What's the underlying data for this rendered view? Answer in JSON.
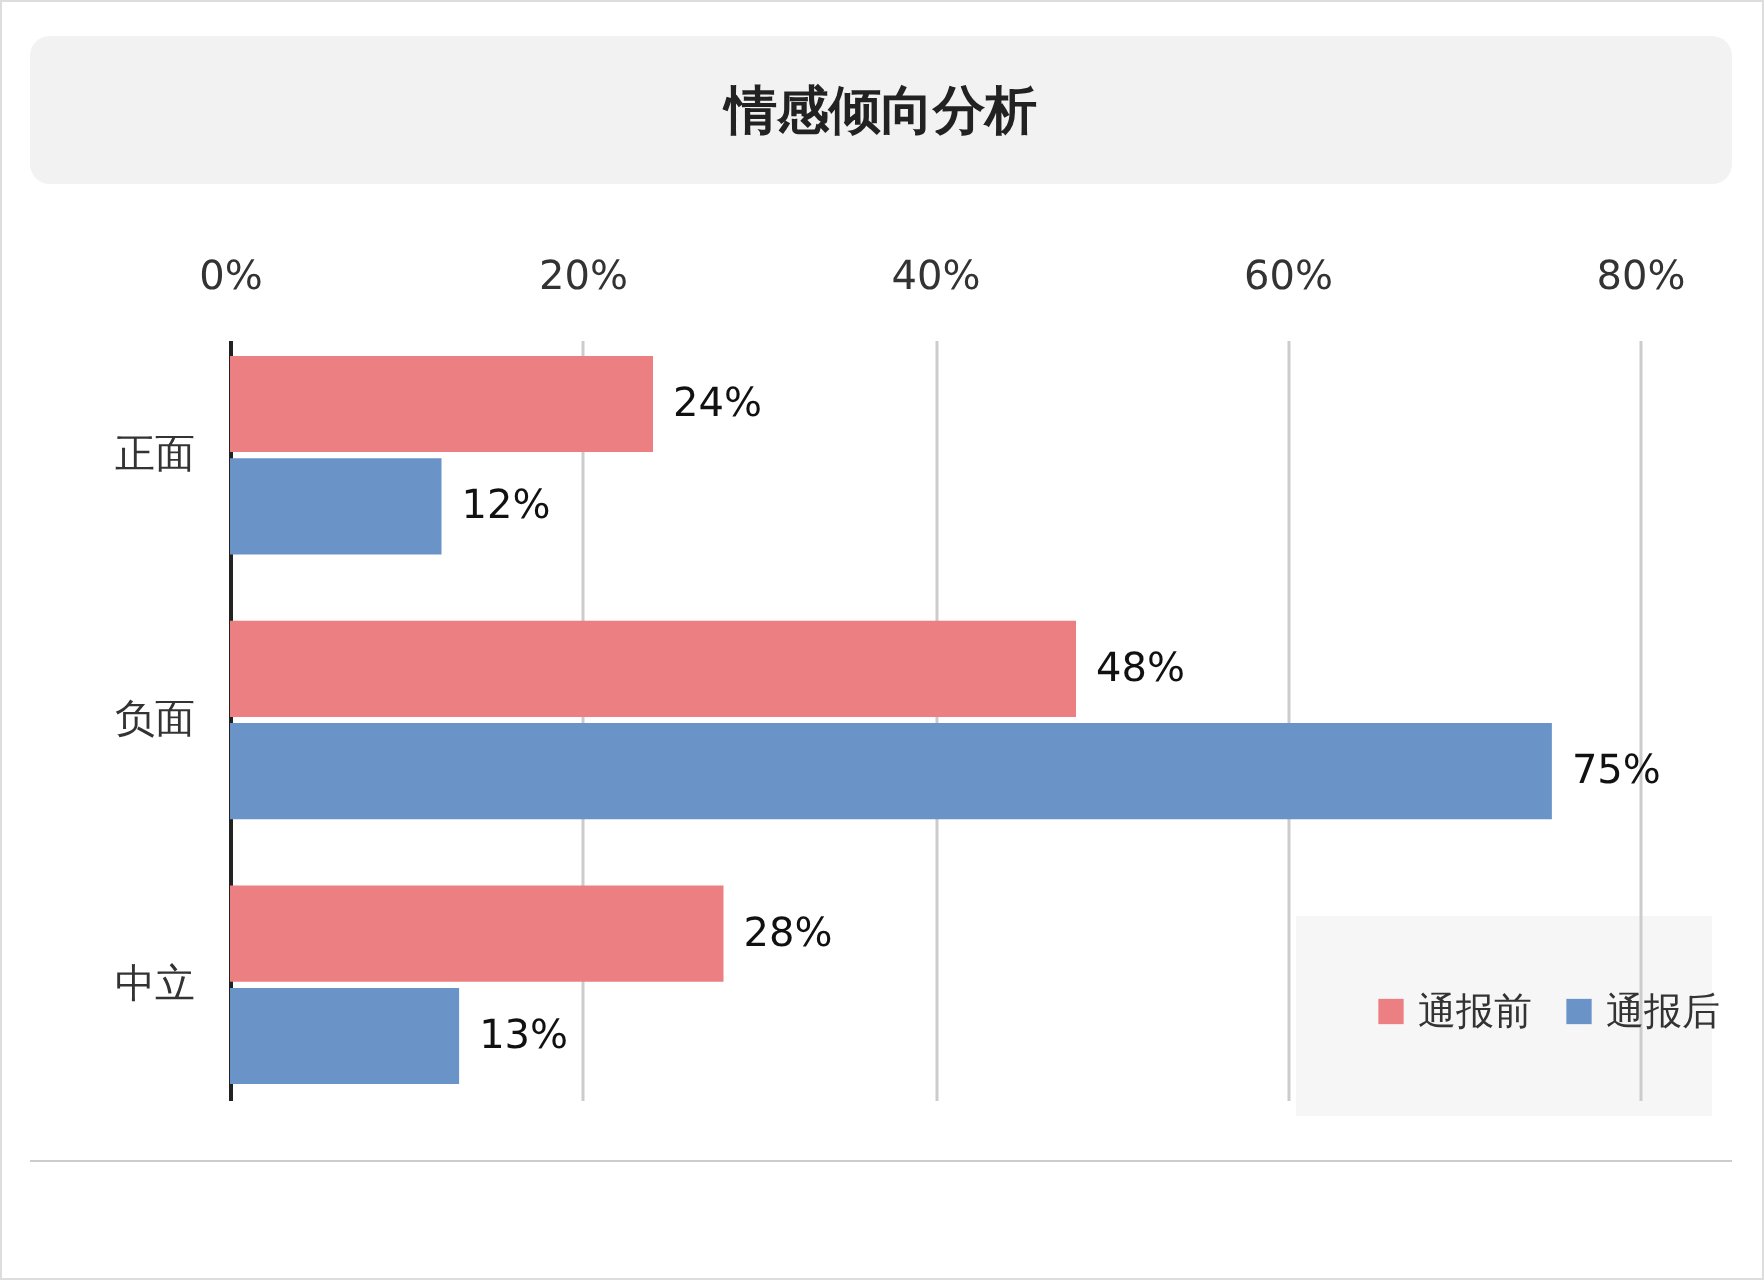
{
  "chart_data": {
    "type": "bar",
    "orientation": "horizontal",
    "title": "情感倾向分析",
    "categories": [
      "正面",
      "负面",
      "中立"
    ],
    "series": [
      {
        "name": "通报前",
        "color": "#eb7f81",
        "values": [
          24,
          48,
          28
        ],
        "value_labels": [
          "24%",
          "48%",
          "28%"
        ]
      },
      {
        "name": "通报后",
        "color": "#6a94c8",
        "values": [
          12,
          75,
          13
        ],
        "value_labels": [
          "12%",
          "75%",
          "13%"
        ]
      }
    ],
    "xlim": [
      0,
      80
    ],
    "xticks": [
      {
        "value": 0,
        "label": "0%"
      },
      {
        "value": 20,
        "label": "20%"
      },
      {
        "value": 40,
        "label": "40%"
      },
      {
        "value": 60,
        "label": "60%"
      },
      {
        "value": 80,
        "label": "80%"
      }
    ],
    "grid": "x",
    "legend": "bottom right"
  }
}
